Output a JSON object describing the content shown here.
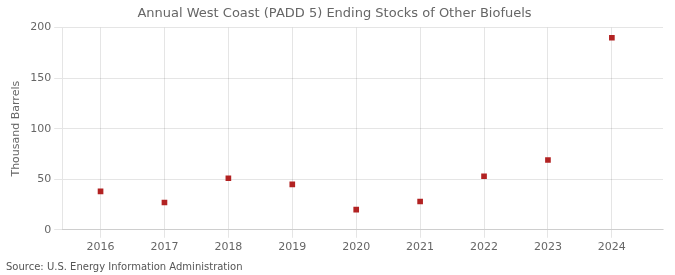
{
  "chart_data": {
    "type": "scatter",
    "title": "Annual West Coast (PADD 5) Ending Stocks of Other Biofuels",
    "ylabel": "Thousand Barrels",
    "source": "Source: U.S. Energy Information Administration",
    "x": [
      2016,
      2017,
      2018,
      2019,
      2020,
      2021,
      2022,
      2023,
      2024
    ],
    "values": [
      38,
      27,
      51,
      45,
      20,
      28,
      53,
      69,
      190
    ],
    "color": "#b22222",
    "marker": "square",
    "xlim": [
      2015.4,
      2024.8
    ],
    "xticks": [
      2016,
      2017,
      2018,
      2019,
      2020,
      2021,
      2022,
      2023,
      2024
    ],
    "ylim": [
      0,
      200
    ],
    "yticks": [
      0,
      50,
      100,
      150,
      200
    ],
    "grid": true
  }
}
